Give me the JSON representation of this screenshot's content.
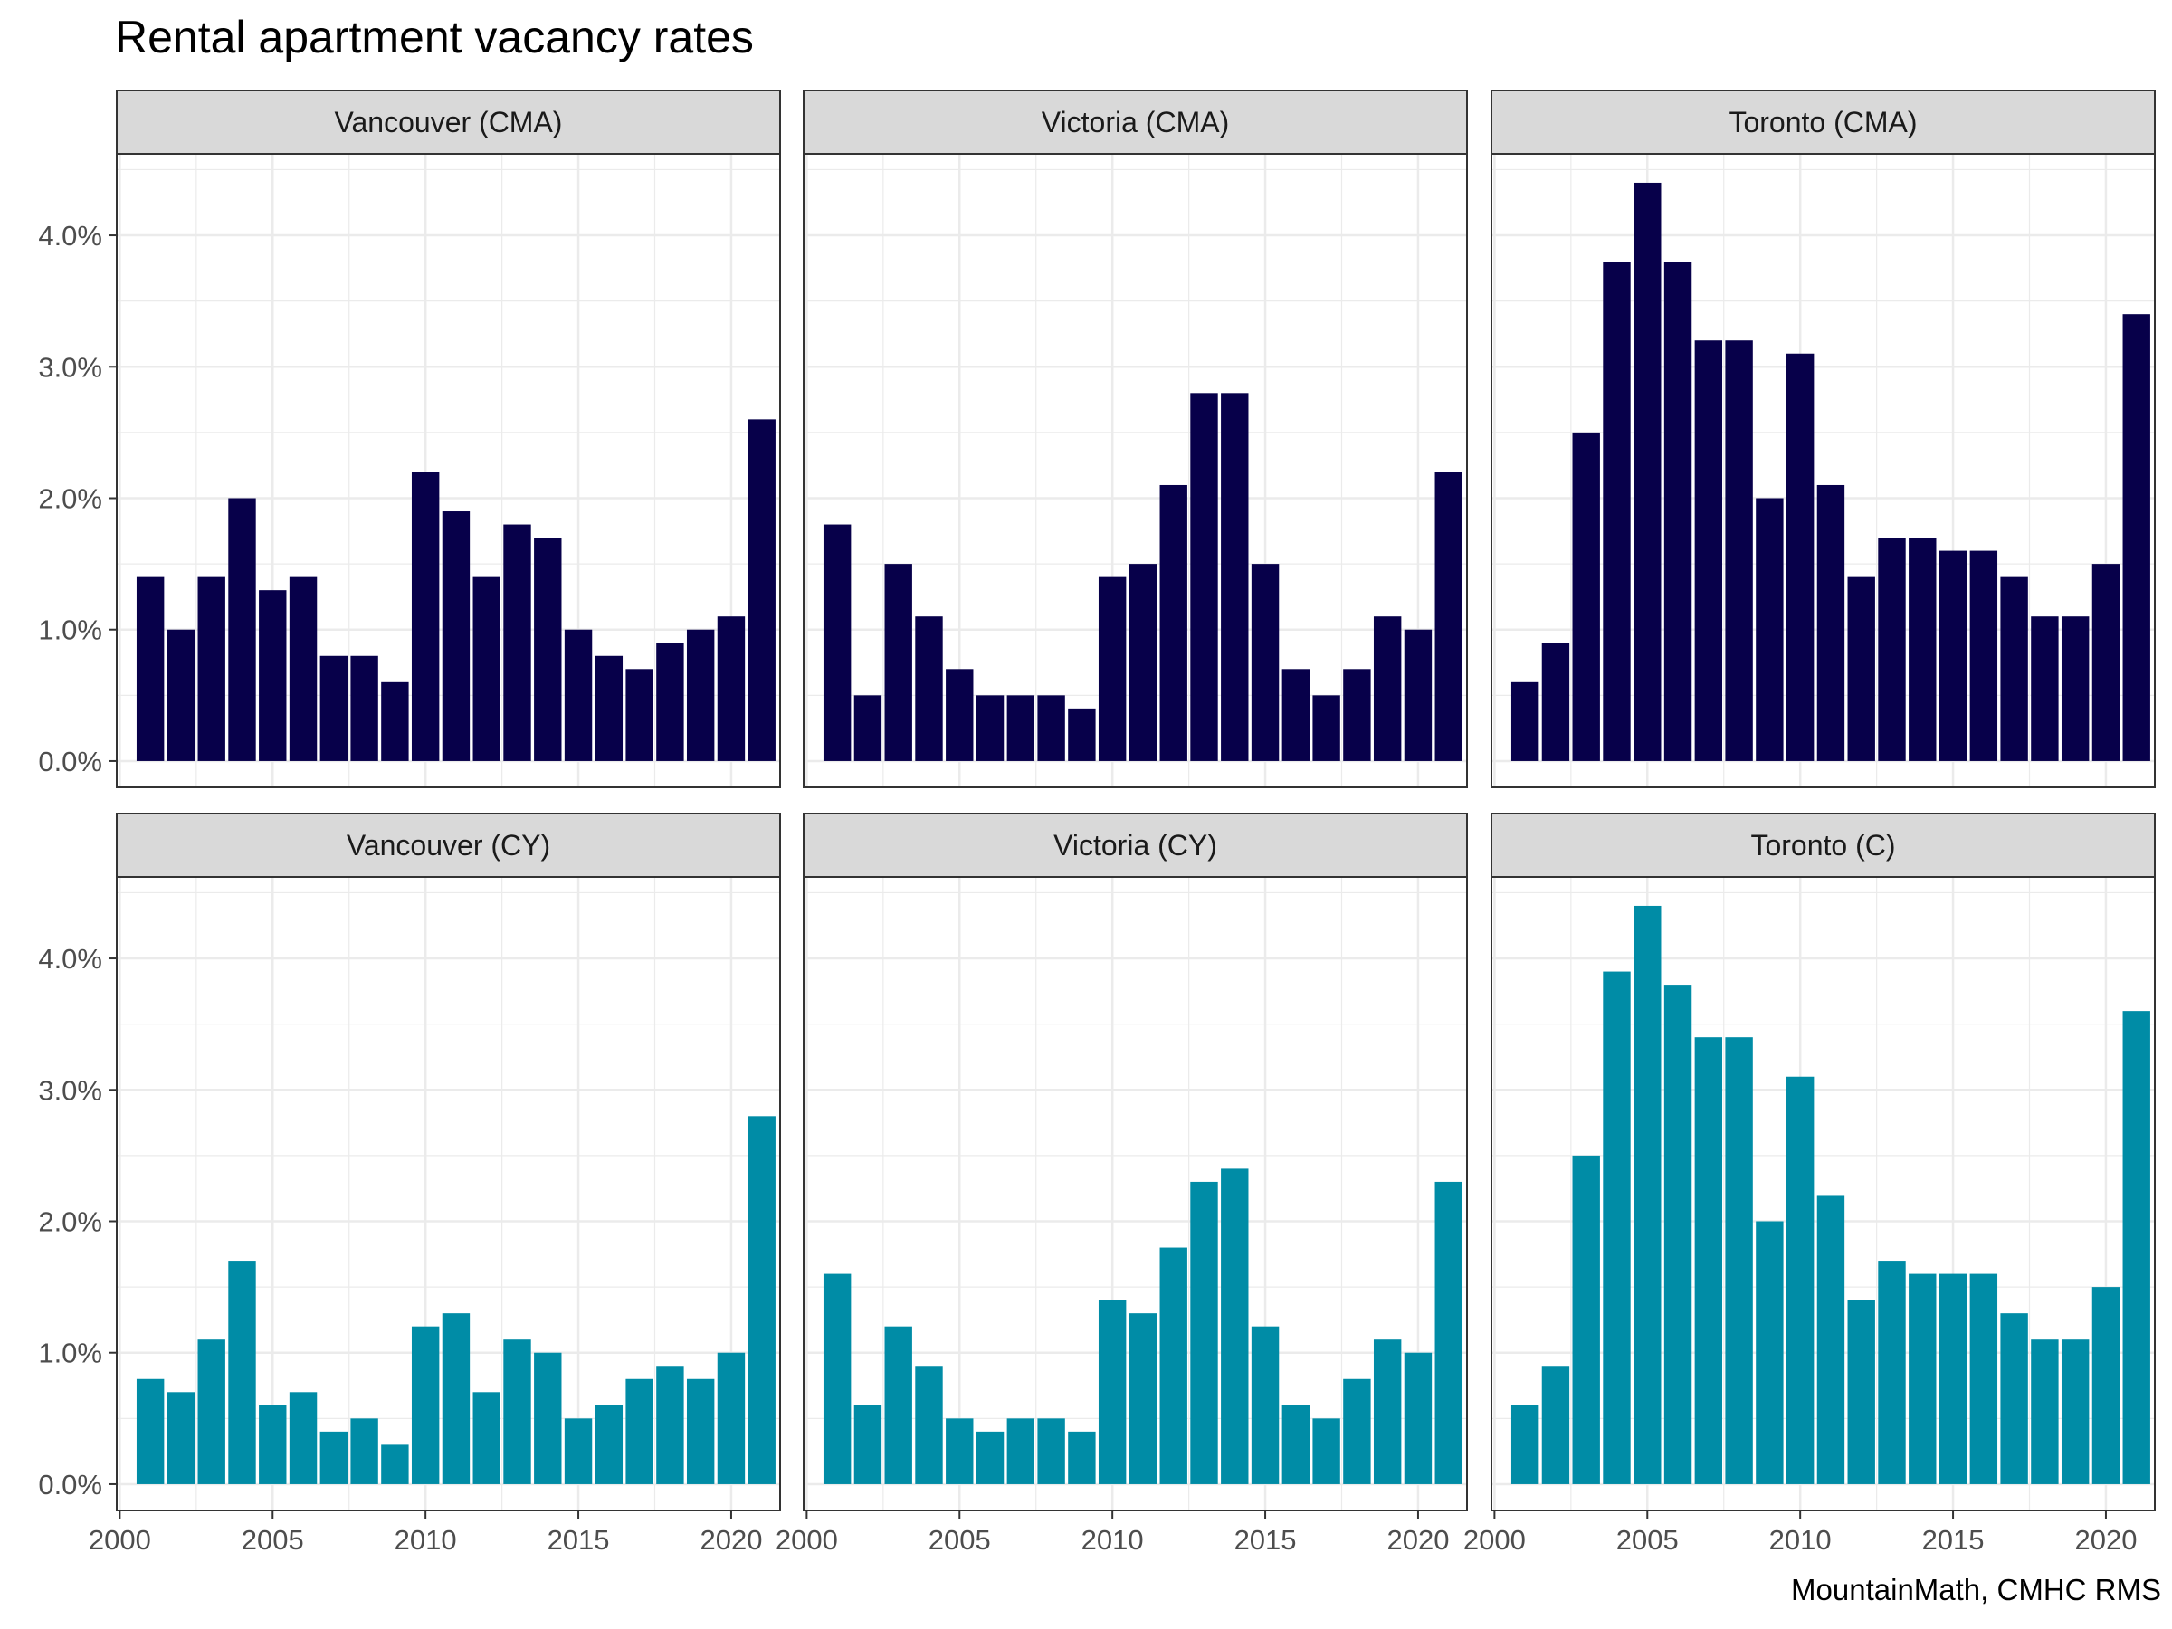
{
  "title": "Rental apartment vacancy rates",
  "caption": "MountainMath, CMHC RMS",
  "colors": {
    "cma_bar": "#07004a",
    "city_bar": "#008ca6",
    "strip_fill": "#d9d9d9",
    "grid": "#ebebeb",
    "panel_border": "#333333"
  },
  "chart_data": {
    "type": "bar",
    "facet_rows": 2,
    "facet_cols": 3,
    "x_ticks": [
      2000,
      2005,
      2010,
      2015,
      2020
    ],
    "y_ticks": [
      0,
      1,
      2,
      3,
      4
    ],
    "y_tick_labels": [
      "0.0%",
      "1.0%",
      "2.0%",
      "3.0%",
      "4.0%"
    ],
    "xlim": [
      1999.9,
      2021.6
    ],
    "ylim": [
      -0.2,
      4.62
    ],
    "grid": true,
    "years": [
      2001,
      2002,
      2003,
      2004,
      2005,
      2006,
      2007,
      2008,
      2009,
      2010,
      2011,
      2012,
      2013,
      2014,
      2015,
      2016,
      2017,
      2018,
      2019,
      2020,
      2021
    ],
    "panels": [
      {
        "label": "Vancouver (CMA)",
        "row": 0,
        "col": 0,
        "color": "#07004a",
        "values": [
          1.4,
          1.0,
          1.4,
          2.0,
          1.3,
          1.4,
          0.8,
          0.8,
          0.6,
          2.2,
          1.9,
          1.4,
          1.8,
          1.7,
          1.0,
          0.8,
          0.7,
          0.9,
          1.0,
          1.1,
          2.6
        ]
      },
      {
        "label": "Victoria (CMA)",
        "row": 0,
        "col": 1,
        "color": "#07004a",
        "values": [
          1.8,
          0.5,
          1.5,
          1.1,
          0.7,
          0.5,
          0.5,
          0.5,
          0.4,
          1.4,
          1.5,
          2.1,
          2.8,
          2.8,
          1.5,
          0.7,
          0.5,
          0.7,
          1.1,
          1.0,
          2.2
        ]
      },
      {
        "label": "Toronto (CMA)",
        "row": 0,
        "col": 2,
        "color": "#07004a",
        "values": [
          0.6,
          0.9,
          2.5,
          3.8,
          4.4,
          3.8,
          3.2,
          3.2,
          2.0,
          3.1,
          2.1,
          1.4,
          1.7,
          1.7,
          1.6,
          1.6,
          1.4,
          1.1,
          1.1,
          1.5,
          3.4
        ]
      },
      {
        "label": "Vancouver (CY)",
        "row": 1,
        "col": 0,
        "color": "#008ca6",
        "values": [
          0.8,
          0.7,
          1.1,
          1.7,
          0.6,
          0.7,
          0.4,
          0.5,
          0.3,
          1.2,
          1.3,
          0.7,
          1.1,
          1.0,
          0.5,
          0.6,
          0.8,
          0.9,
          0.8,
          1.0,
          2.8
        ]
      },
      {
        "label": "Victoria (CY)",
        "row": 1,
        "col": 1,
        "color": "#008ca6",
        "values": [
          1.6,
          0.6,
          1.2,
          0.9,
          0.5,
          0.4,
          0.5,
          0.5,
          0.4,
          1.4,
          1.3,
          1.8,
          2.3,
          2.4,
          1.2,
          0.6,
          0.5,
          0.8,
          1.1,
          1.0,
          2.3
        ]
      },
      {
        "label": "Toronto (C)",
        "row": 1,
        "col": 2,
        "color": "#008ca6",
        "values": [
          0.6,
          0.9,
          2.5,
          3.9,
          4.4,
          3.8,
          3.4,
          3.4,
          2.0,
          3.1,
          2.2,
          1.4,
          1.7,
          1.6,
          1.6,
          1.6,
          1.3,
          1.1,
          1.1,
          1.5,
          3.6
        ]
      }
    ]
  }
}
